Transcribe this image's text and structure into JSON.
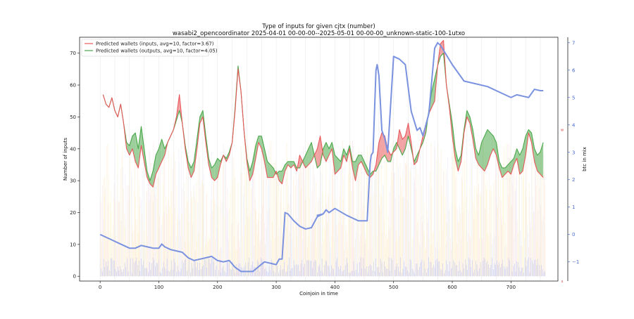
{
  "chart_data": {
    "type": "line",
    "title": "Type of inputs for given cjtx (number)",
    "subtitle": "wasabi2_opencoordinator 2025-04-01 00-00-00--2025-05-01 00-00-00_unknown-static-100-1utxo",
    "xlabel": "Coinjoin in time",
    "ylabel": "Number of inputs",
    "y2label": "btc in mix",
    "xlim": [
      -35,
      780
    ],
    "ylim": [
      -1.5,
      75
    ],
    "y2lim": [
      -1.7,
      7.2
    ],
    "xticks": [
      0,
      100,
      200,
      300,
      400,
      500,
      600,
      700
    ],
    "yticks": [
      0,
      10,
      20,
      30,
      40,
      50,
      60,
      70
    ],
    "y2ticks": [
      -1,
      0,
      1,
      2,
      3,
      4,
      5,
      6,
      7
    ],
    "y2_side_marks": [
      "w",
      "s"
    ],
    "grid": "vertical-faint",
    "legend": {
      "placement": "top-left",
      "entries": [
        {
          "label": "Predicted wallets (inputs, avg=10, factor=3.67)",
          "color": "#e8575a"
        },
        {
          "label": "Predicted wallets (outputs, avg=10, factor=4.05)",
          "color": "#4aa84a"
        }
      ]
    },
    "series": [
      {
        "key": "inputs",
        "color": "#e8575a",
        "x": [
          5,
          10,
          15,
          20,
          25,
          30,
          35,
          40,
          45,
          50,
          55,
          60,
          65,
          70,
          75,
          80,
          85,
          90,
          95,
          100,
          105,
          110,
          115,
          120,
          125,
          130,
          135,
          140,
          145,
          150,
          155,
          160,
          165,
          170,
          175,
          180,
          185,
          190,
          195,
          200,
          205,
          210,
          215,
          220,
          225,
          230,
          235,
          240,
          245,
          250,
          255,
          260,
          265,
          270,
          275,
          280,
          285,
          290,
          295,
          300,
          305,
          310,
          315,
          320,
          325,
          330,
          335,
          340,
          345,
          350,
          355,
          360,
          365,
          370,
          375,
          380,
          385,
          390,
          395,
          400,
          405,
          410,
          415,
          420,
          425,
          430,
          435,
          440,
          445,
          450,
          455,
          460,
          465,
          470,
          475,
          480,
          485,
          490,
          495,
          500,
          505,
          510,
          515,
          520,
          525,
          530,
          535,
          540,
          545,
          550,
          555,
          560,
          565,
          570,
          575,
          580,
          585,
          590,
          595,
          600,
          605,
          610,
          615,
          620,
          625,
          630,
          635,
          640,
          645,
          650,
          655,
          660,
          665,
          670,
          675,
          680,
          685,
          690,
          695,
          700,
          705,
          710,
          715,
          720,
          725,
          730,
          735,
          740,
          745,
          750,
          755
        ],
        "y": [
          57,
          54,
          53,
          56,
          52,
          50,
          54,
          48,
          40,
          38,
          40,
          36,
          34,
          41,
          36,
          31,
          29,
          28,
          32,
          34,
          36,
          38,
          42,
          44,
          46,
          50,
          57,
          48,
          40,
          34,
          31,
          33,
          40,
          48,
          50,
          42,
          35,
          31,
          30,
          31,
          35,
          38,
          36,
          38,
          42,
          52,
          65,
          58,
          46,
          36,
          30,
          32,
          37,
          42,
          40,
          36,
          31,
          31,
          31,
          33,
          30,
          29,
          33,
          35,
          34,
          35,
          33,
          38,
          36,
          34,
          35,
          36,
          38,
          40,
          44,
          38,
          36,
          38,
          40,
          32,
          33,
          34,
          38,
          36,
          40,
          34,
          30,
          35,
          36,
          34,
          32,
          31,
          32,
          35,
          42,
          45,
          44,
          40,
          38,
          39,
          40,
          46,
          43,
          44,
          48,
          42,
          35,
          36,
          40,
          44,
          47,
          51,
          53,
          55,
          66,
          73,
          74,
          60,
          53,
          44,
          37,
          33,
          36,
          45,
          50,
          48,
          43,
          37,
          35,
          34,
          33,
          35,
          38,
          40,
          38,
          34,
          31,
          32,
          33,
          32,
          35,
          37,
          32,
          33,
          38,
          45,
          42,
          36,
          33,
          32,
          31
        ]
      },
      {
        "key": "outputs",
        "color": "#4aa84a",
        "x": [
          5,
          10,
          15,
          20,
          25,
          30,
          35,
          40,
          45,
          50,
          55,
          60,
          65,
          70,
          75,
          80,
          85,
          90,
          95,
          100,
          105,
          110,
          115,
          120,
          125,
          130,
          135,
          140,
          145,
          150,
          155,
          160,
          165,
          170,
          175,
          180,
          185,
          190,
          195,
          200,
          205,
          210,
          215,
          220,
          225,
          230,
          235,
          240,
          245,
          250,
          255,
          260,
          265,
          270,
          275,
          280,
          285,
          290,
          295,
          300,
          305,
          310,
          315,
          320,
          325,
          330,
          335,
          340,
          345,
          350,
          355,
          360,
          365,
          370,
          375,
          380,
          385,
          390,
          395,
          400,
          405,
          410,
          415,
          420,
          425,
          430,
          435,
          440,
          445,
          450,
          455,
          460,
          465,
          470,
          475,
          480,
          485,
          490,
          495,
          500,
          505,
          510,
          515,
          520,
          525,
          530,
          535,
          540,
          545,
          550,
          555,
          560,
          565,
          570,
          575,
          580,
          585,
          590,
          595,
          600,
          605,
          610,
          615,
          620,
          625,
          630,
          635,
          640,
          645,
          650,
          655,
          660,
          665,
          670,
          675,
          680,
          685,
          690,
          695,
          700,
          705,
          710,
          715,
          720,
          725,
          730,
          735,
          740,
          745,
          750,
          755
        ],
        "y": [
          57,
          54,
          53,
          56,
          52,
          50,
          54,
          48,
          42,
          41,
          44,
          45,
          40,
          47,
          40,
          33,
          30,
          33,
          38,
          40,
          43,
          40,
          42,
          44,
          46,
          49,
          52,
          48,
          41,
          36,
          34,
          36,
          43,
          50,
          52,
          44,
          37,
          34,
          35,
          37,
          36,
          38,
          37,
          39,
          42,
          53,
          66,
          58,
          46,
          37,
          33,
          36,
          41,
          44,
          44,
          40,
          36,
          35,
          34,
          32,
          33,
          33,
          35,
          36,
          36,
          36,
          34,
          34,
          36,
          38,
          40,
          42,
          38,
          34,
          35,
          40,
          42,
          40,
          42,
          38,
          37,
          36,
          40,
          38,
          41,
          36,
          36,
          38,
          38,
          36,
          34,
          32,
          33,
          33,
          35,
          37,
          38,
          36,
          36,
          40,
          42,
          40,
          38,
          40,
          44,
          40,
          36,
          38,
          40,
          42,
          45,
          52,
          58,
          62,
          66,
          69,
          70,
          60,
          54,
          48,
          40,
          36,
          38,
          46,
          52,
          50,
          46,
          40,
          38,
          42,
          44,
          46,
          45,
          44,
          42,
          36,
          34,
          34,
          35,
          36,
          37,
          40,
          38,
          40,
          44,
          46,
          45,
          40,
          38,
          39,
          42
        ]
      },
      {
        "key": "btc",
        "axis": "right",
        "color": "#7a92e0",
        "x": [
          0,
          10,
          20,
          30,
          40,
          50,
          60,
          70,
          80,
          90,
          100,
          105,
          110,
          120,
          130,
          140,
          150,
          160,
          170,
          180,
          190,
          200,
          210,
          220,
          230,
          240,
          260,
          280,
          300,
          305,
          310,
          315,
          320,
          330,
          340,
          350,
          360,
          370,
          380,
          370,
          380,
          385,
          390,
          400,
          420,
          440,
          450,
          455,
          460,
          462,
          465,
          470,
          472,
          475,
          480,
          485,
          490,
          500,
          510,
          520,
          530,
          540,
          545,
          550,
          560,
          570,
          575,
          580,
          600,
          620,
          640,
          660,
          680,
          700,
          710,
          720,
          730,
          740,
          750,
          755
        ],
        "y": [
          0,
          -0.1,
          -0.2,
          -0.3,
          -0.4,
          -0.5,
          -0.5,
          -0.4,
          -0.45,
          -0.5,
          -0.5,
          -0.35,
          -0.45,
          -0.55,
          -0.6,
          -0.65,
          -0.85,
          -0.95,
          -0.9,
          -0.85,
          -0.8,
          -0.95,
          -1.0,
          -0.95,
          -1.2,
          -1.35,
          -1.35,
          -1.0,
          -1.1,
          -0.9,
          -0.9,
          0.8,
          0.75,
          0.5,
          0.3,
          0.2,
          0.25,
          0.65,
          0.75,
          0.7,
          0.75,
          0.9,
          0.8,
          0.95,
          0.7,
          0.5,
          0.5,
          0.5,
          2.6,
          2.9,
          3.0,
          6.0,
          6.2,
          5.8,
          3.8,
          3.5,
          3.0,
          6.5,
          6.4,
          6.2,
          4.5,
          3.8,
          3.9,
          3.6,
          4.4,
          6.8,
          7.0,
          6.9,
          6.2,
          5.6,
          5.5,
          5.4,
          5.2,
          5.0,
          5.1,
          5.05,
          5.0,
          5.3,
          5.25,
          5.25
        ]
      }
    ]
  }
}
